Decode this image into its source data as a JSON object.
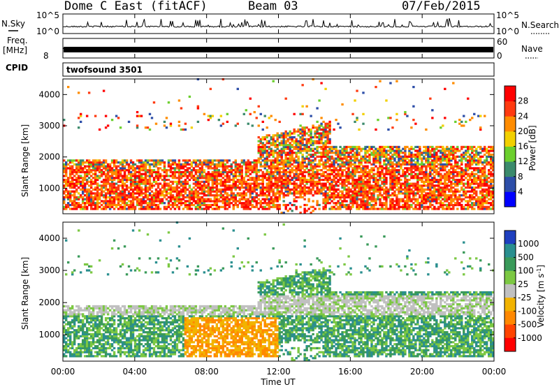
{
  "header": {
    "title_left": "Dome C East (fitACF)",
    "title_center": "Beam 03",
    "title_right": "07/Feb/2015"
  },
  "chart_data": [
    {
      "type": "line",
      "panel": "noise",
      "left_label": "N.Sky",
      "right_label": "N.Search",
      "left_ticks": [
        "10^5",
        "10^0"
      ],
      "right_ticks": [
        "10^5",
        "10^0"
      ],
      "scale": "log",
      "ylim": [
        1,
        100000
      ],
      "color": "#000000"
    },
    {
      "type": "line",
      "panel": "frequency",
      "left_label": "Freq.",
      "left_unit": "[MHz]",
      "right_label": "Nave",
      "left_ticks": [
        "8"
      ],
      "right_ticks": [
        "60",
        "0"
      ],
      "ylim": [
        0,
        60
      ]
    },
    {
      "type": "table",
      "panel": "cpid",
      "label": "CPID",
      "program": "twofsound 3501"
    },
    {
      "type": "heatmap",
      "panel": "power",
      "ylabel": "Slant Range [km]",
      "y_ticks": [
        1000,
        2000,
        3000,
        4000
      ],
      "ylim": [
        180,
        4500
      ],
      "colorbar_label": "Power [dB]",
      "colorbar_ticks": [
        "4",
        "8",
        "12",
        "16",
        "20",
        "24",
        "28"
      ],
      "colorbar_range": [
        0,
        32
      ],
      "colors": [
        "#0000ff",
        "#2d4ea8",
        "#3b8a6c",
        "#6ccf2e",
        "#f2d000",
        "#ff8c00",
        "#ff3a10",
        "#ff0000"
      ]
    },
    {
      "type": "heatmap",
      "panel": "velocity",
      "ylabel": "Slant Range [km]",
      "y_ticks": [
        1000,
        2000,
        3000,
        4000
      ],
      "ylim": [
        180,
        4500
      ],
      "colorbar_label": "Velocity [m s^-1]",
      "colorbar_ticks": [
        "1000",
        "500",
        "100",
        "25",
        "-25",
        "-100",
        "-500",
        "-1000"
      ],
      "colors": [
        "#1f3fbf",
        "#2a8f8f",
        "#3a9a5a",
        "#7cc843",
        "#c0c0c0",
        "#f2b300",
        "#ff8800",
        "#ff4400",
        "#ff0000"
      ],
      "xlabel": "Time UT",
      "x_ticks": [
        "00:00",
        "04:00",
        "08:00",
        "12:00",
        "16:00",
        "20:00",
        "00:00"
      ]
    }
  ]
}
